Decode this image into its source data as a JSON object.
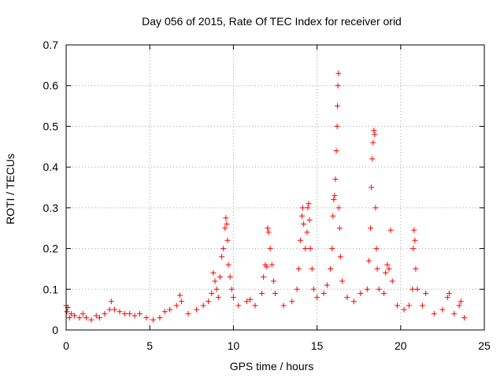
{
  "chart_data": {
    "type": "scatter",
    "title": "Day 056 of 2015, Rate Of TEC Index for receiver orid",
    "xlabel": "GPS time / hours",
    "ylabel": "ROTI / TECUs",
    "xlim": [
      0,
      25
    ],
    "ylim": [
      0,
      0.7
    ],
    "xticks": [
      "0",
      "5",
      "10",
      "15",
      "20",
      "25"
    ],
    "xtick_values": [
      0,
      5,
      10,
      15,
      20,
      25
    ],
    "yticks": [
      "0",
      "0.1",
      "0.2",
      "0.3",
      "0.4",
      "0.5",
      "0.6",
      "0.7"
    ],
    "ytick_values": [
      0,
      0.1,
      0.2,
      0.3,
      0.4,
      0.5,
      0.6,
      0.7
    ],
    "grid": true,
    "marker": "+",
    "series": [
      {
        "name": "ROTI",
        "color": "#ff0000",
        "points": [
          [
            0.0,
            0.06
          ],
          [
            0.05,
            0.045
          ],
          [
            0.1,
            0.055
          ],
          [
            0.2,
            0.03
          ],
          [
            0.3,
            0.04
          ],
          [
            0.5,
            0.035
          ],
          [
            0.8,
            0.03
          ],
          [
            1.0,
            0.04
          ],
          [
            1.2,
            0.03
          ],
          [
            1.5,
            0.025
          ],
          [
            1.8,
            0.035
          ],
          [
            2.0,
            0.03
          ],
          [
            2.3,
            0.04
          ],
          [
            2.6,
            0.05
          ],
          [
            2.7,
            0.07
          ],
          [
            2.9,
            0.05
          ],
          [
            3.2,
            0.045
          ],
          [
            3.5,
            0.04
          ],
          [
            3.8,
            0.04
          ],
          [
            4.1,
            0.035
          ],
          [
            4.4,
            0.04
          ],
          [
            4.8,
            0.03
          ],
          [
            5.2,
            0.025
          ],
          [
            5.6,
            0.03
          ],
          [
            5.9,
            0.045
          ],
          [
            6.2,
            0.05
          ],
          [
            6.6,
            0.06
          ],
          [
            6.8,
            0.085
          ],
          [
            6.9,
            0.07
          ],
          [
            7.3,
            0.04
          ],
          [
            7.8,
            0.05
          ],
          [
            8.2,
            0.06
          ],
          [
            8.5,
            0.07
          ],
          [
            8.7,
            0.09
          ],
          [
            8.8,
            0.14
          ],
          [
            8.9,
            0.12
          ],
          [
            9.0,
            0.1
          ],
          [
            9.1,
            0.08
          ],
          [
            9.2,
            0.13
          ],
          [
            9.3,
            0.18
          ],
          [
            9.4,
            0.2
          ],
          [
            9.5,
            0.25
          ],
          [
            9.55,
            0.275
          ],
          [
            9.6,
            0.26
          ],
          [
            9.65,
            0.22
          ],
          [
            9.7,
            0.16
          ],
          [
            9.8,
            0.13
          ],
          [
            9.9,
            0.1
          ],
          [
            10.0,
            0.08
          ],
          [
            10.3,
            0.06
          ],
          [
            10.8,
            0.07
          ],
          [
            11.0,
            0.075
          ],
          [
            11.3,
            0.06
          ],
          [
            11.7,
            0.09
          ],
          [
            11.8,
            0.13
          ],
          [
            11.9,
            0.16
          ],
          [
            12.0,
            0.155
          ],
          [
            12.05,
            0.25
          ],
          [
            12.1,
            0.24
          ],
          [
            12.2,
            0.2
          ],
          [
            12.3,
            0.16
          ],
          [
            12.4,
            0.12
          ],
          [
            12.5,
            0.09
          ],
          [
            13.0,
            0.06
          ],
          [
            13.5,
            0.07
          ],
          [
            13.8,
            0.1
          ],
          [
            13.9,
            0.15
          ],
          [
            14.0,
            0.22
          ],
          [
            14.1,
            0.28
          ],
          [
            14.15,
            0.3
          ],
          [
            14.2,
            0.26
          ],
          [
            14.3,
            0.2
          ],
          [
            14.4,
            0.24
          ],
          [
            14.45,
            0.3
          ],
          [
            14.5,
            0.31
          ],
          [
            14.55,
            0.27
          ],
          [
            14.6,
            0.2
          ],
          [
            14.7,
            0.15
          ],
          [
            14.8,
            0.1
          ],
          [
            15.0,
            0.08
          ],
          [
            15.4,
            0.09
          ],
          [
            15.6,
            0.11
          ],
          [
            15.8,
            0.15
          ],
          [
            15.9,
            0.2
          ],
          [
            15.95,
            0.28
          ],
          [
            16.0,
            0.32
          ],
          [
            16.05,
            0.33
          ],
          [
            16.1,
            0.37
          ],
          [
            16.15,
            0.44
          ],
          [
            16.2,
            0.5
          ],
          [
            16.22,
            0.55
          ],
          [
            16.25,
            0.6
          ],
          [
            16.28,
            0.63
          ],
          [
            16.3,
            0.3
          ],
          [
            16.35,
            0.25
          ],
          [
            16.4,
            0.18
          ],
          [
            16.5,
            0.12
          ],
          [
            16.8,
            0.08
          ],
          [
            17.2,
            0.07
          ],
          [
            17.6,
            0.09
          ],
          [
            18.0,
            0.1
          ],
          [
            18.1,
            0.17
          ],
          [
            18.2,
            0.25
          ],
          [
            18.25,
            0.35
          ],
          [
            18.3,
            0.42
          ],
          [
            18.35,
            0.46
          ],
          [
            18.4,
            0.49
          ],
          [
            18.45,
            0.48
          ],
          [
            18.5,
            0.3
          ],
          [
            18.55,
            0.2
          ],
          [
            18.6,
            0.15
          ],
          [
            18.7,
            0.1
          ],
          [
            19.0,
            0.09
          ],
          [
            19.1,
            0.14
          ],
          [
            19.2,
            0.16
          ],
          [
            19.3,
            0.15
          ],
          [
            19.4,
            0.245
          ],
          [
            19.5,
            0.12
          ],
          [
            19.8,
            0.06
          ],
          [
            20.2,
            0.05
          ],
          [
            20.5,
            0.06
          ],
          [
            20.7,
            0.1
          ],
          [
            20.75,
            0.2
          ],
          [
            20.8,
            0.245
          ],
          [
            20.85,
            0.22
          ],
          [
            20.9,
            0.15
          ],
          [
            21.0,
            0.1
          ],
          [
            21.3,
            0.06
          ],
          [
            21.5,
            0.09
          ],
          [
            22.0,
            0.04
          ],
          [
            22.5,
            0.05
          ],
          [
            22.8,
            0.08
          ],
          [
            22.9,
            0.09
          ],
          [
            23.2,
            0.04
          ],
          [
            23.5,
            0.06
          ],
          [
            23.6,
            0.07
          ],
          [
            23.8,
            0.03
          ]
        ]
      }
    ]
  }
}
